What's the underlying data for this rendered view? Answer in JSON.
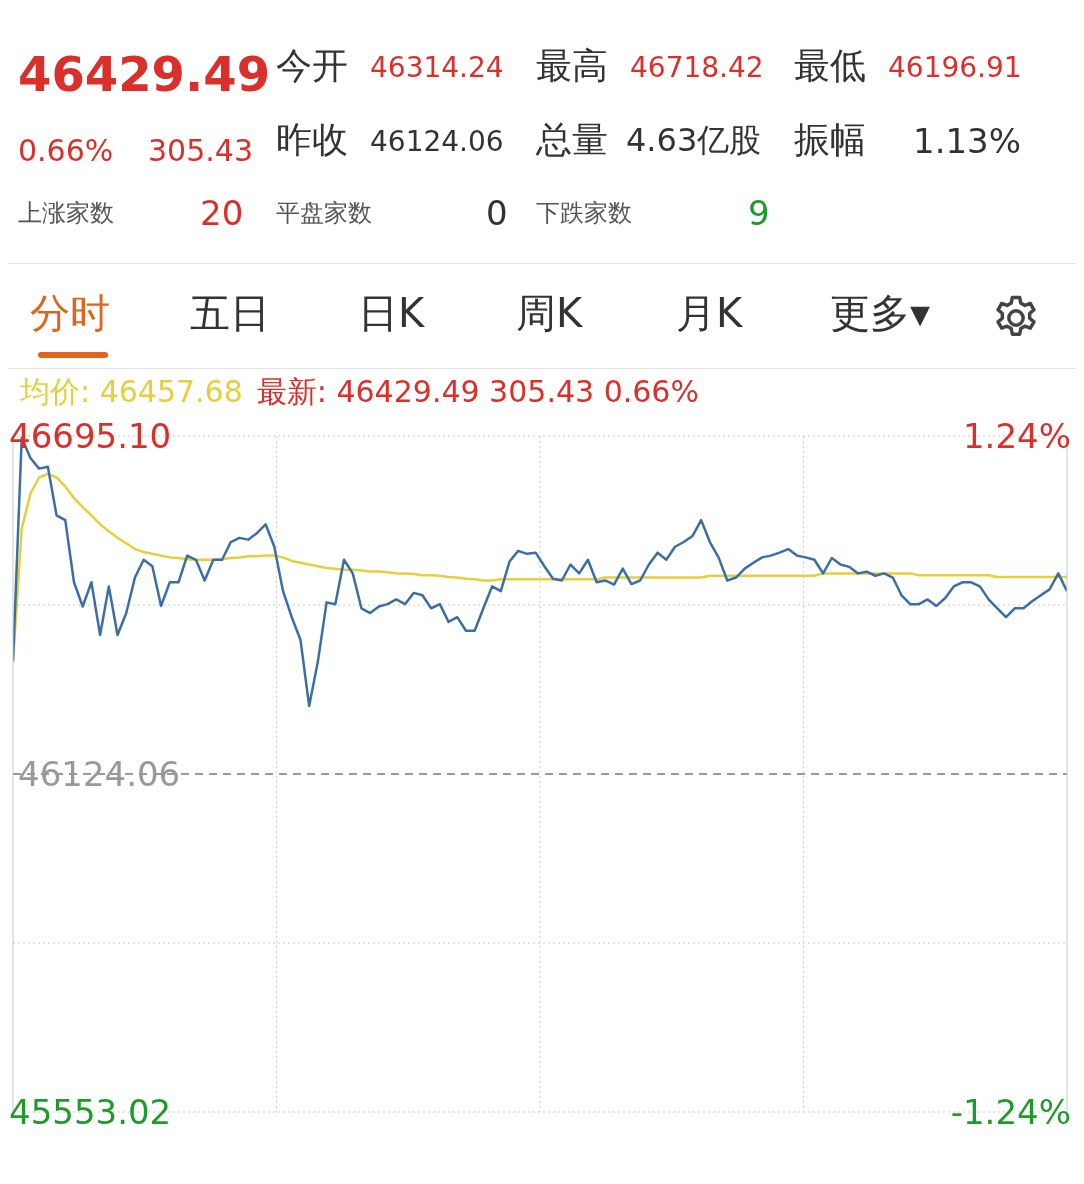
{
  "chart_data": [
    {
      "type": "other",
      "annotations": [
        "46429.49",
        "今开",
        "46314.24",
        "最高",
        "46718.42",
        "最低",
        "46196.91",
        "0.66%",
        "305.43",
        "昨收",
        "46124.06",
        "总量",
        "4.63亿股",
        "振幅",
        "1.13%",
        "上涨家数",
        "20",
        "平盘家数",
        "0",
        "下跌家数",
        "9",
        "分时",
        "五日",
        "日K",
        "周K",
        "月K",
        "更多▾"
      ]
    },
    {
      "type": "line",
      "annotations": [
        "均价: 46457.68",
        "最新: 46429.49 305.43 0.66%"
      ],
      "categories": [
        null,
        null,
        null,
        null,
        null,
        null,
        null,
        null,
        null,
        null,
        null,
        null,
        null,
        null,
        null,
        null,
        null,
        null,
        null,
        null,
        null,
        null,
        null,
        null,
        null,
        null,
        null,
        null,
        null,
        null,
        null,
        null,
        null,
        null,
        null,
        null,
        null,
        null,
        null,
        null,
        null,
        null,
        null,
        null,
        null,
        null,
        null,
        null,
        null,
        null,
        null,
        null,
        null,
        null,
        null,
        null,
        null,
        null,
        null,
        null,
        null,
        null,
        null,
        null,
        null,
        null,
        null,
        null,
        null,
        null,
        null,
        null,
        null,
        null,
        null,
        null,
        null,
        null,
        null,
        null,
        null,
        null,
        null,
        null,
        null,
        null,
        null,
        null,
        null,
        null,
        null,
        null,
        null,
        null,
        null,
        null,
        null,
        null,
        null,
        null,
        null,
        null,
        null,
        null,
        null,
        null,
        null,
        null,
        null,
        null,
        null,
        null,
        null,
        null,
        null,
        null,
        null,
        null,
        null,
        null,
        null,
        null
      ],
      "series": [
        {
          "color": "#e6cf3c",
          "values": [
            46314,
            46538,
            46598,
            46625,
            46631,
            46625,
            46610,
            46590,
            46575,
            46561,
            46546,
            46534,
            46523,
            46514,
            46504,
            46499,
            46496,
            46493,
            46490,
            46489,
            46487,
            46486,
            46486,
            46486,
            46487,
            46489,
            46490,
            46492,
            46492,
            46493,
            46493,
            46490,
            46484,
            46481,
            46478,
            46475,
            46472,
            46471,
            46469,
            46469,
            46468,
            46466,
            46466,
            46465,
            46463,
            46463,
            46462,
            46460,
            46460,
            46459,
            46457,
            46456,
            46454,
            46453,
            46451,
            46451,
            46453,
            46453,
            46453,
            46453,
            46453,
            46453,
            46453,
            46453,
            46453,
            46453,
            46453,
            46453,
            46456,
            46456,
            46456,
            46456,
            46456,
            46456,
            46456,
            46456,
            46456,
            46456,
            46456,
            46456,
            46459,
            46459,
            46459,
            46459,
            46459,
            46459,
            46459,
            46459,
            46459,
            46459,
            46459,
            46459,
            46459,
            46463,
            46463,
            46463,
            46463,
            46463,
            46463,
            46463,
            46463,
            46463,
            46463,
            46463,
            46460,
            46460,
            46460,
            46460,
            46460,
            46460,
            46460,
            46460,
            46460,
            46457,
            46457,
            46457,
            46457,
            46457,
            46457,
            46457,
            46457,
            46457
          ]
        },
        {
          "color": "#3b6fa3",
          "values": [
            46314,
            46692,
            46658,
            46640,
            46643,
            46561,
            46553,
            46448,
            46407,
            46448,
            46359,
            46441,
            46359,
            46396,
            46456,
            46486,
            46475,
            46408,
            46448,
            46448,
            46493,
            46486,
            46451,
            46486,
            46486,
            46516,
            46523,
            46520,
            46531,
            46546,
            46508,
            46433,
            46389,
            46351,
            46239,
            46314,
            46414,
            46411,
            46486,
            46463,
            46404,
            46396,
            46407,
            46411,
            46419,
            46411,
            46430,
            46426,
            46404,
            46411,
            46381,
            46389,
            46366,
            46366,
            46404,
            46441,
            46433,
            46483,
            46501,
            46496,
            46498,
            46475,
            46454,
            46451,
            46478,
            46463,
            46486,
            46448,
            46451,
            46444,
            46471,
            46445,
            46451,
            46478,
            46498,
            46486,
            46508,
            46516,
            46526,
            46553,
            46516,
            46490,
            46451,
            46456,
            46471,
            46481,
            46490,
            46493,
            46498,
            46504,
            46493,
            46490,
            46486,
            46463,
            46489,
            46478,
            46474,
            46463,
            46466,
            46459,
            46463,
            46456,
            46426,
            46411,
            46411,
            46419,
            46408,
            46421,
            46441,
            46448,
            46448,
            46441,
            46419,
            46404,
            46389,
            46404,
            46404,
            46416,
            46426,
            46436,
            46463,
            46433
          ]
        }
      ],
      "ylim": [
        45553.02,
        46695.1
      ],
      "yticks": [
        {
          "value": 46695.1,
          "label": "46695.10"
        },
        {
          "value": 46409.58,
          "label": null
        },
        {
          "value": 45838.54,
          "label": null
        },
        {
          "value": 45553.02,
          "label": "45553.02"
        }
      ],
      "y2lim": [
        -1.24,
        1.24
      ],
      "y2ticks": [
        {
          "value": 1.24,
          "label": "1.24%"
        },
        {
          "value": -1.24,
          "label": "-1.24%"
        }
      ],
      "ref_lines": [
        {
          "axis": "y",
          "value": 46124.06,
          "label": "46124.06",
          "line_style": "dashed",
          "color": "#999999"
        }
      ],
      "grid": true,
      "tick_labels": "y"
    }
  ]
}
